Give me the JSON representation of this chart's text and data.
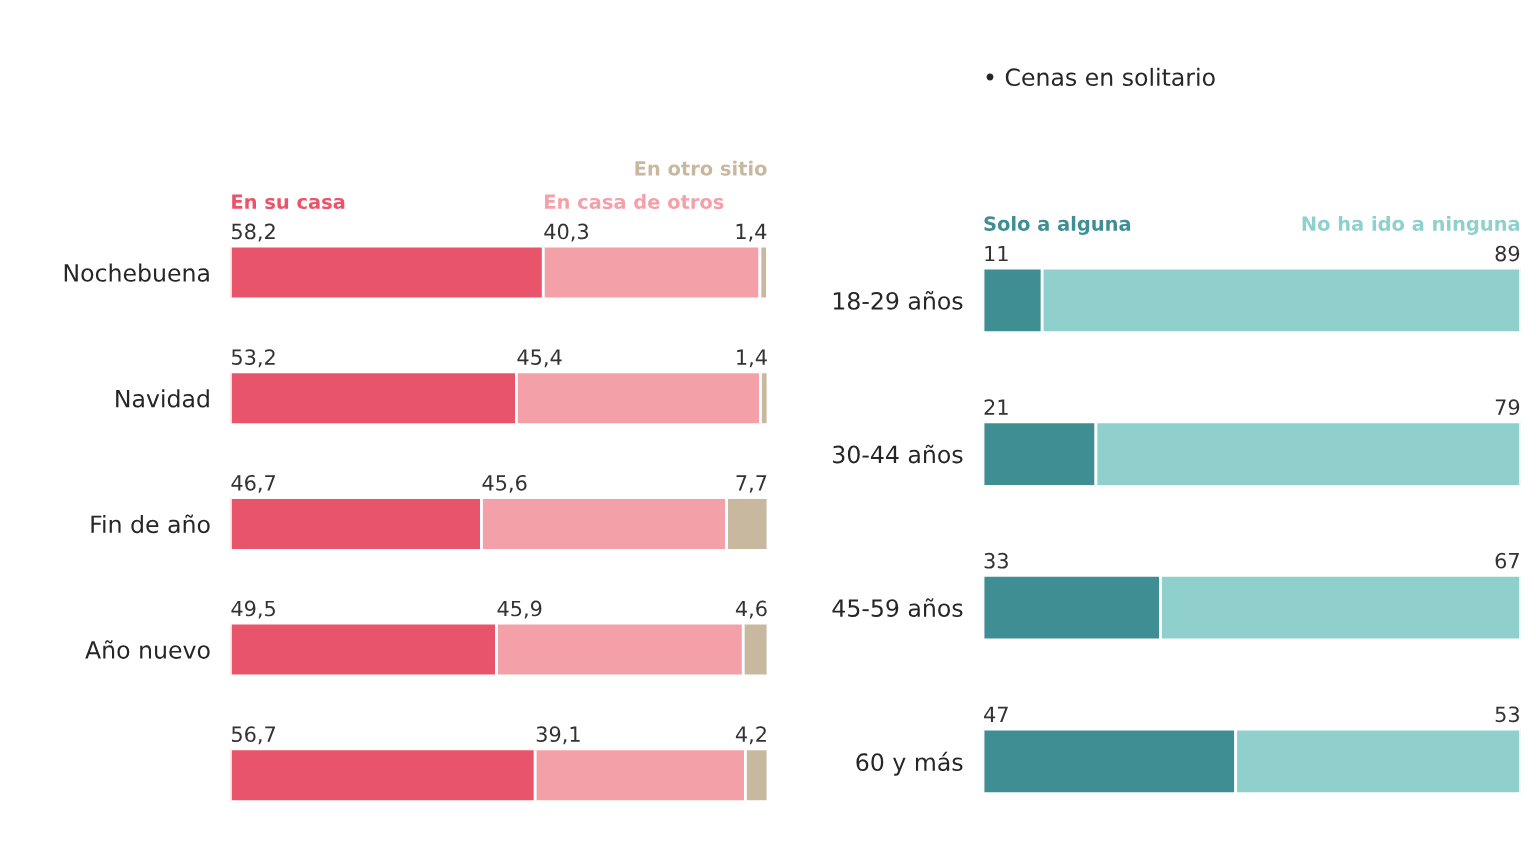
{
  "chart_data": [
    {
      "type": "bar",
      "orientation": "horizontal",
      "stacked": true,
      "tick_labels": "y",
      "categories": [
        "Nochebuena",
        "Navidad",
        "Fin de año",
        "Año nuevo",
        null
      ],
      "series": [
        {
          "name": "En su casa",
          "color": "#e8546a",
          "values": [
            58.2,
            53.2,
            46.7,
            49.5,
            56.7
          ],
          "value_labels": [
            "58,2",
            "53,2",
            "46,7",
            "49,5",
            "56,7"
          ]
        },
        {
          "name": "En casa de otros",
          "color": "#f4a0a8",
          "values": [
            40.3,
            45.4,
            45.6,
            45.9,
            39.1
          ],
          "value_labels": [
            "40,3",
            "45,4",
            "45,6",
            "45,9",
            "39,1"
          ]
        },
        {
          "name": "En otro sitio",
          "color": "#c9b8a0",
          "values": [
            1.4,
            1.4,
            7.7,
            4.6,
            4.2
          ],
          "value_labels": [
            "1,4",
            "1,4",
            "7,7",
            "4,6",
            "4,2"
          ]
        }
      ]
    },
    {
      "type": "bar",
      "orientation": "horizontal",
      "stacked": true,
      "tick_labels": "y",
      "title": "• Cenas en solitario",
      "categories": [
        "18-29 años",
        "30-44 años",
        "45-59 años",
        "60 y más"
      ],
      "series": [
        {
          "name": "Solo a alguna",
          "color": "#3e8e94",
          "values": [
            11,
            21,
            33,
            47
          ],
          "value_labels": [
            "11",
            "21",
            "33",
            "47"
          ]
        },
        {
          "name": "No ha ido a ninguna",
          "color": "#8fd0cc",
          "values": [
            89,
            79,
            67,
            53
          ],
          "value_labels": [
            "89",
            "79",
            "67",
            "53"
          ]
        }
      ]
    }
  ]
}
